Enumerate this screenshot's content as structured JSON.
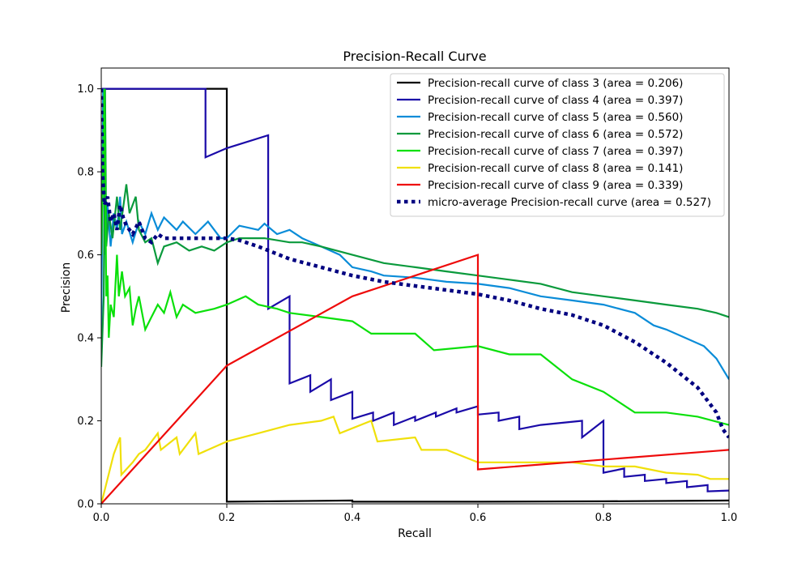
{
  "chart_data": {
    "type": "line",
    "title": "Precision-Recall Curve",
    "xlabel": "Recall",
    "ylabel": "Precision",
    "xlim": [
      0,
      1
    ],
    "ylim": [
      0,
      1.05
    ],
    "x_ticks": [
      "0.0",
      "0.2",
      "0.4",
      "0.6",
      "0.8",
      "1.0"
    ],
    "y_ticks": [
      "0.0",
      "0.2",
      "0.4",
      "0.6",
      "0.8",
      "1.0"
    ],
    "grid": false,
    "legend_position": "top-right",
    "series": [
      {
        "name": "Precision-recall curve of class 3 (area = 0.206)",
        "color": "#000000",
        "dashed": false,
        "points": [
          [
            0,
            1.0
          ],
          [
            0.2,
            1.0
          ],
          [
            0.2,
            0.005
          ],
          [
            0.4,
            0.008
          ],
          [
            0.4,
            0.005
          ],
          [
            0.6,
            0.005
          ],
          [
            0.8,
            0.006
          ],
          [
            1.0,
            0.008
          ]
        ]
      },
      {
        "name": "Precision-recall curve of class 4 (area = 0.397)",
        "color": "#1a0aa8",
        "dashed": false,
        "points": [
          [
            0,
            1.0
          ],
          [
            0.166,
            1.0
          ],
          [
            0.166,
            0.835
          ],
          [
            0.2,
            0.857
          ],
          [
            0.266,
            0.888
          ],
          [
            0.266,
            0.47
          ],
          [
            0.3,
            0.5
          ],
          [
            0.3,
            0.29
          ],
          [
            0.333,
            0.31
          ],
          [
            0.333,
            0.27
          ],
          [
            0.366,
            0.3
          ],
          [
            0.366,
            0.25
          ],
          [
            0.4,
            0.27
          ],
          [
            0.4,
            0.205
          ],
          [
            0.433,
            0.22
          ],
          [
            0.433,
            0.2
          ],
          [
            0.466,
            0.22
          ],
          [
            0.466,
            0.19
          ],
          [
            0.5,
            0.21
          ],
          [
            0.5,
            0.2
          ],
          [
            0.533,
            0.22
          ],
          [
            0.533,
            0.21
          ],
          [
            0.566,
            0.23
          ],
          [
            0.566,
            0.22
          ],
          [
            0.6,
            0.235
          ],
          [
            0.6,
            0.215
          ],
          [
            0.633,
            0.22
          ],
          [
            0.633,
            0.2
          ],
          [
            0.666,
            0.21
          ],
          [
            0.666,
            0.18
          ],
          [
            0.7,
            0.19
          ],
          [
            0.766,
            0.2
          ],
          [
            0.766,
            0.16
          ],
          [
            0.8,
            0.2
          ],
          [
            0.8,
            0.075
          ],
          [
            0.833,
            0.085
          ],
          [
            0.833,
            0.065
          ],
          [
            0.866,
            0.07
          ],
          [
            0.866,
            0.055
          ],
          [
            0.9,
            0.06
          ],
          [
            0.9,
            0.05
          ],
          [
            0.933,
            0.055
          ],
          [
            0.933,
            0.04
          ],
          [
            0.966,
            0.045
          ],
          [
            0.966,
            0.03
          ],
          [
            1.0,
            0.032
          ]
        ]
      },
      {
        "name": "Precision-recall curve of class 5 (area = 0.560)",
        "color": "#0a8cd8",
        "dashed": false,
        "points": [
          [
            0,
            0.4
          ],
          [
            0.003,
            1.0
          ],
          [
            0.006,
            0.6
          ],
          [
            0.01,
            0.72
          ],
          [
            0.015,
            0.62
          ],
          [
            0.02,
            0.7
          ],
          [
            0.025,
            0.66
          ],
          [
            0.03,
            0.74
          ],
          [
            0.033,
            0.65
          ],
          [
            0.04,
            0.68
          ],
          [
            0.05,
            0.63
          ],
          [
            0.06,
            0.68
          ],
          [
            0.07,
            0.65
          ],
          [
            0.08,
            0.7
          ],
          [
            0.09,
            0.66
          ],
          [
            0.1,
            0.69
          ],
          [
            0.12,
            0.66
          ],
          [
            0.13,
            0.68
          ],
          [
            0.15,
            0.65
          ],
          [
            0.17,
            0.68
          ],
          [
            0.19,
            0.64
          ],
          [
            0.2,
            0.64
          ],
          [
            0.22,
            0.67
          ],
          [
            0.25,
            0.66
          ],
          [
            0.26,
            0.675
          ],
          [
            0.28,
            0.65
          ],
          [
            0.3,
            0.66
          ],
          [
            0.32,
            0.64
          ],
          [
            0.35,
            0.62
          ],
          [
            0.38,
            0.6
          ],
          [
            0.4,
            0.57
          ],
          [
            0.43,
            0.56
          ],
          [
            0.45,
            0.55
          ],
          [
            0.5,
            0.545
          ],
          [
            0.55,
            0.535
          ],
          [
            0.6,
            0.53
          ],
          [
            0.65,
            0.52
          ],
          [
            0.7,
            0.5
          ],
          [
            0.75,
            0.49
          ],
          [
            0.8,
            0.48
          ],
          [
            0.85,
            0.46
          ],
          [
            0.88,
            0.43
          ],
          [
            0.9,
            0.42
          ],
          [
            0.93,
            0.4
          ],
          [
            0.96,
            0.38
          ],
          [
            0.98,
            0.35
          ],
          [
            1.0,
            0.3
          ]
        ]
      },
      {
        "name": "Precision-recall curve of class 6 (area = 0.572)",
        "color": "#0a9a3c",
        "dashed": false,
        "points": [
          [
            0,
            0.33
          ],
          [
            0.004,
            0.5
          ],
          [
            0.006,
            1.0
          ],
          [
            0.008,
            0.62
          ],
          [
            0.012,
            0.7
          ],
          [
            0.018,
            0.64
          ],
          [
            0.025,
            0.74
          ],
          [
            0.03,
            0.66
          ],
          [
            0.04,
            0.77
          ],
          [
            0.045,
            0.7
          ],
          [
            0.055,
            0.74
          ],
          [
            0.06,
            0.66
          ],
          [
            0.07,
            0.63
          ],
          [
            0.08,
            0.64
          ],
          [
            0.09,
            0.58
          ],
          [
            0.1,
            0.62
          ],
          [
            0.12,
            0.63
          ],
          [
            0.14,
            0.61
          ],
          [
            0.16,
            0.62
          ],
          [
            0.18,
            0.61
          ],
          [
            0.2,
            0.63
          ],
          [
            0.22,
            0.64
          ],
          [
            0.26,
            0.64
          ],
          [
            0.3,
            0.63
          ],
          [
            0.32,
            0.63
          ],
          [
            0.35,
            0.62
          ],
          [
            0.4,
            0.6
          ],
          [
            0.45,
            0.58
          ],
          [
            0.5,
            0.57
          ],
          [
            0.55,
            0.56
          ],
          [
            0.6,
            0.55
          ],
          [
            0.65,
            0.54
          ],
          [
            0.7,
            0.53
          ],
          [
            0.75,
            0.51
          ],
          [
            0.8,
            0.5
          ],
          [
            0.85,
            0.49
          ],
          [
            0.9,
            0.48
          ],
          [
            0.95,
            0.47
          ],
          [
            0.98,
            0.46
          ],
          [
            1.0,
            0.45
          ]
        ]
      },
      {
        "name": "Precision-recall curve of class 7 (area = 0.397)",
        "color": "#0ae00a",
        "dashed": false,
        "points": [
          [
            0,
            0.6
          ],
          [
            0.005,
            1.0
          ],
          [
            0.008,
            0.5
          ],
          [
            0.01,
            0.55
          ],
          [
            0.012,
            0.4
          ],
          [
            0.015,
            0.48
          ],
          [
            0.02,
            0.45
          ],
          [
            0.025,
            0.6
          ],
          [
            0.028,
            0.5
          ],
          [
            0.033,
            0.56
          ],
          [
            0.038,
            0.5
          ],
          [
            0.045,
            0.52
          ],
          [
            0.05,
            0.43
          ],
          [
            0.055,
            0.47
          ],
          [
            0.06,
            0.5
          ],
          [
            0.07,
            0.42
          ],
          [
            0.08,
            0.45
          ],
          [
            0.09,
            0.48
          ],
          [
            0.1,
            0.46
          ],
          [
            0.11,
            0.51
          ],
          [
            0.12,
            0.45
          ],
          [
            0.13,
            0.48
          ],
          [
            0.15,
            0.46
          ],
          [
            0.18,
            0.47
          ],
          [
            0.2,
            0.48
          ],
          [
            0.23,
            0.5
          ],
          [
            0.25,
            0.48
          ],
          [
            0.28,
            0.47
          ],
          [
            0.3,
            0.46
          ],
          [
            0.35,
            0.45
          ],
          [
            0.4,
            0.44
          ],
          [
            0.43,
            0.41
          ],
          [
            0.5,
            0.41
          ],
          [
            0.53,
            0.37
          ],
          [
            0.6,
            0.38
          ],
          [
            0.65,
            0.36
          ],
          [
            0.7,
            0.36
          ],
          [
            0.75,
            0.3
          ],
          [
            0.8,
            0.27
          ],
          [
            0.85,
            0.22
          ],
          [
            0.9,
            0.22
          ],
          [
            0.95,
            0.21
          ],
          [
            1.0,
            0.19
          ]
        ]
      },
      {
        "name": "Precision-recall curve of class 8 (area = 0.141)",
        "color": "#f0e00a",
        "dashed": false,
        "points": [
          [
            0,
            0.0
          ],
          [
            0.02,
            0.12
          ],
          [
            0.03,
            0.16
          ],
          [
            0.032,
            0.07
          ],
          [
            0.05,
            0.1
          ],
          [
            0.06,
            0.12
          ],
          [
            0.07,
            0.13
          ],
          [
            0.09,
            0.17
          ],
          [
            0.095,
            0.13
          ],
          [
            0.12,
            0.16
          ],
          [
            0.125,
            0.12
          ],
          [
            0.15,
            0.17
          ],
          [
            0.155,
            0.12
          ],
          [
            0.2,
            0.15
          ],
          [
            0.25,
            0.17
          ],
          [
            0.3,
            0.19
          ],
          [
            0.35,
            0.2
          ],
          [
            0.37,
            0.21
          ],
          [
            0.38,
            0.17
          ],
          [
            0.43,
            0.2
          ],
          [
            0.44,
            0.15
          ],
          [
            0.5,
            0.16
          ],
          [
            0.51,
            0.13
          ],
          [
            0.55,
            0.13
          ],
          [
            0.6,
            0.1
          ],
          [
            0.65,
            0.1
          ],
          [
            0.7,
            0.1
          ],
          [
            0.75,
            0.1
          ],
          [
            0.8,
            0.09
          ],
          [
            0.85,
            0.09
          ],
          [
            0.9,
            0.075
          ],
          [
            0.95,
            0.07
          ],
          [
            0.97,
            0.06
          ],
          [
            1.0,
            0.06
          ]
        ]
      },
      {
        "name": "Precision-recall curve of class 9 (area = 0.339)",
        "color": "#ee0a0a",
        "dashed": false,
        "points": [
          [
            0,
            0.0
          ],
          [
            0.2,
            0.333
          ],
          [
            0.4,
            0.5
          ],
          [
            0.6,
            0.6
          ],
          [
            0.6,
            0.083
          ],
          [
            1.0,
            0.13
          ]
        ]
      },
      {
        "name": "micro-average Precision-recall curve (area = 0.527)",
        "color": "#000080",
        "dashed": true,
        "points": [
          [
            0,
            1.0
          ],
          [
            0.002,
            0.8
          ],
          [
            0.005,
            0.72
          ],
          [
            0.01,
            0.74
          ],
          [
            0.015,
            0.68
          ],
          [
            0.02,
            0.7
          ],
          [
            0.025,
            0.66
          ],
          [
            0.03,
            0.72
          ],
          [
            0.035,
            0.69
          ],
          [
            0.04,
            0.67
          ],
          [
            0.05,
            0.65
          ],
          [
            0.06,
            0.68
          ],
          [
            0.07,
            0.64
          ],
          [
            0.08,
            0.63
          ],
          [
            0.09,
            0.65
          ],
          [
            0.1,
            0.64
          ],
          [
            0.12,
            0.64
          ],
          [
            0.15,
            0.64
          ],
          [
            0.18,
            0.64
          ],
          [
            0.2,
            0.64
          ],
          [
            0.22,
            0.635
          ],
          [
            0.25,
            0.62
          ],
          [
            0.3,
            0.59
          ],
          [
            0.35,
            0.57
          ],
          [
            0.4,
            0.55
          ],
          [
            0.45,
            0.535
          ],
          [
            0.5,
            0.525
          ],
          [
            0.55,
            0.515
          ],
          [
            0.6,
            0.505
          ],
          [
            0.65,
            0.49
          ],
          [
            0.7,
            0.47
          ],
          [
            0.75,
            0.455
          ],
          [
            0.8,
            0.43
          ],
          [
            0.85,
            0.39
          ],
          [
            0.9,
            0.34
          ],
          [
            0.95,
            0.28
          ],
          [
            0.98,
            0.22
          ],
          [
            0.99,
            0.18
          ],
          [
            1.0,
            0.16
          ]
        ]
      }
    ]
  }
}
